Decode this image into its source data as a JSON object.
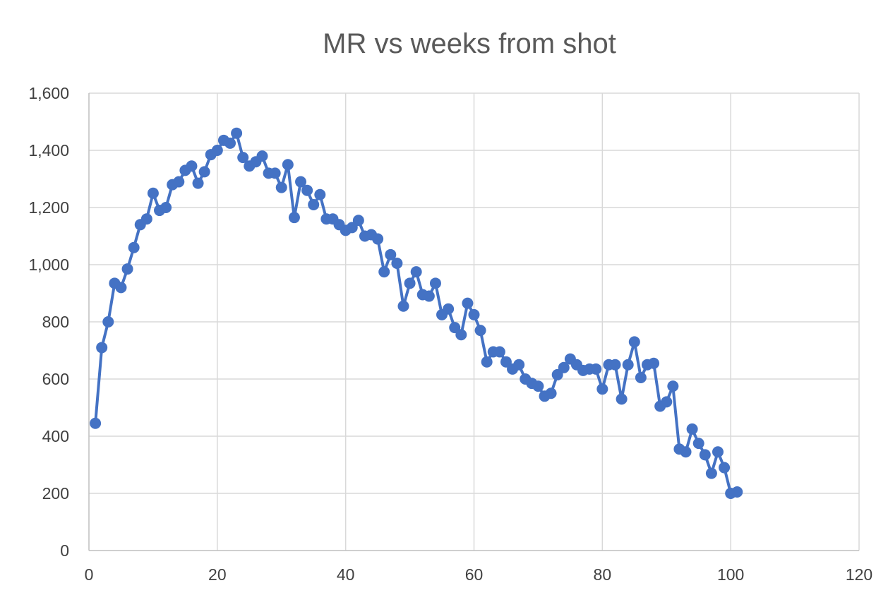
{
  "chart_data": {
    "type": "scatter",
    "title": "MR vs weeks from shot",
    "xlabel": "",
    "ylabel": "",
    "xlim": [
      0,
      120
    ],
    "ylim": [
      0,
      1600
    ],
    "x_ticks": [
      0,
      20,
      40,
      60,
      80,
      100,
      120
    ],
    "y_ticks": [
      0,
      200,
      400,
      600,
      800,
      1000,
      1200,
      1400,
      1600
    ],
    "x_tick_labels": [
      "0",
      "20",
      "40",
      "60",
      "80",
      "100",
      "120"
    ],
    "y_tick_labels": [
      "0",
      "200",
      "400",
      "600",
      "800",
      "1,000",
      "1,200",
      "1,400",
      "1,600"
    ],
    "grid": true,
    "legend": "none",
    "markers": true,
    "lines": true,
    "series_color": "#4472c4",
    "series": [
      {
        "x": [
          1,
          2,
          3,
          4,
          5,
          6,
          7,
          8,
          9,
          10,
          11,
          12,
          13,
          14,
          15,
          16,
          17,
          18,
          19,
          20,
          21,
          22,
          23,
          24,
          25,
          26,
          27,
          28,
          29,
          30,
          31,
          32,
          33,
          34,
          35,
          36,
          37,
          38,
          39,
          40,
          41,
          42,
          43,
          44,
          45,
          46,
          47,
          48,
          49,
          50,
          51,
          52,
          53,
          54,
          55,
          56,
          57,
          58,
          59,
          60,
          61,
          62,
          63,
          64,
          65,
          66,
          67,
          68,
          69,
          70,
          71,
          72,
          73,
          74,
          75,
          76,
          77,
          78,
          79,
          80,
          81,
          82,
          83,
          84,
          85,
          86,
          87,
          88,
          89,
          90,
          91,
          92,
          93,
          94,
          95,
          96,
          97,
          98,
          99,
          100,
          101
        ],
        "y": [
          445,
          710,
          800,
          935,
          920,
          985,
          1060,
          1140,
          1160,
          1250,
          1190,
          1200,
          1280,
          1290,
          1330,
          1345,
          1285,
          1325,
          1385,
          1400,
          1435,
          1425,
          1460,
          1375,
          1345,
          1360,
          1380,
          1320,
          1320,
          1270,
          1350,
          1165,
          1290,
          1260,
          1210,
          1245,
          1160,
          1160,
          1140,
          1120,
          1130,
          1155,
          1100,
          1105,
          1090,
          975,
          1035,
          1005,
          855,
          935,
          975,
          895,
          890,
          935,
          825,
          845,
          780,
          755,
          865,
          825,
          770,
          660,
          695,
          695,
          660,
          635,
          650,
          600,
          585,
          575,
          540,
          550,
          615,
          640,
          670,
          650,
          630,
          635,
          635,
          565,
          650,
          650,
          530,
          650,
          730,
          605,
          650,
          655,
          505,
          520,
          575,
          355,
          345,
          425,
          375,
          335,
          270,
          345,
          290,
          200,
          205
        ]
      }
    ]
  }
}
